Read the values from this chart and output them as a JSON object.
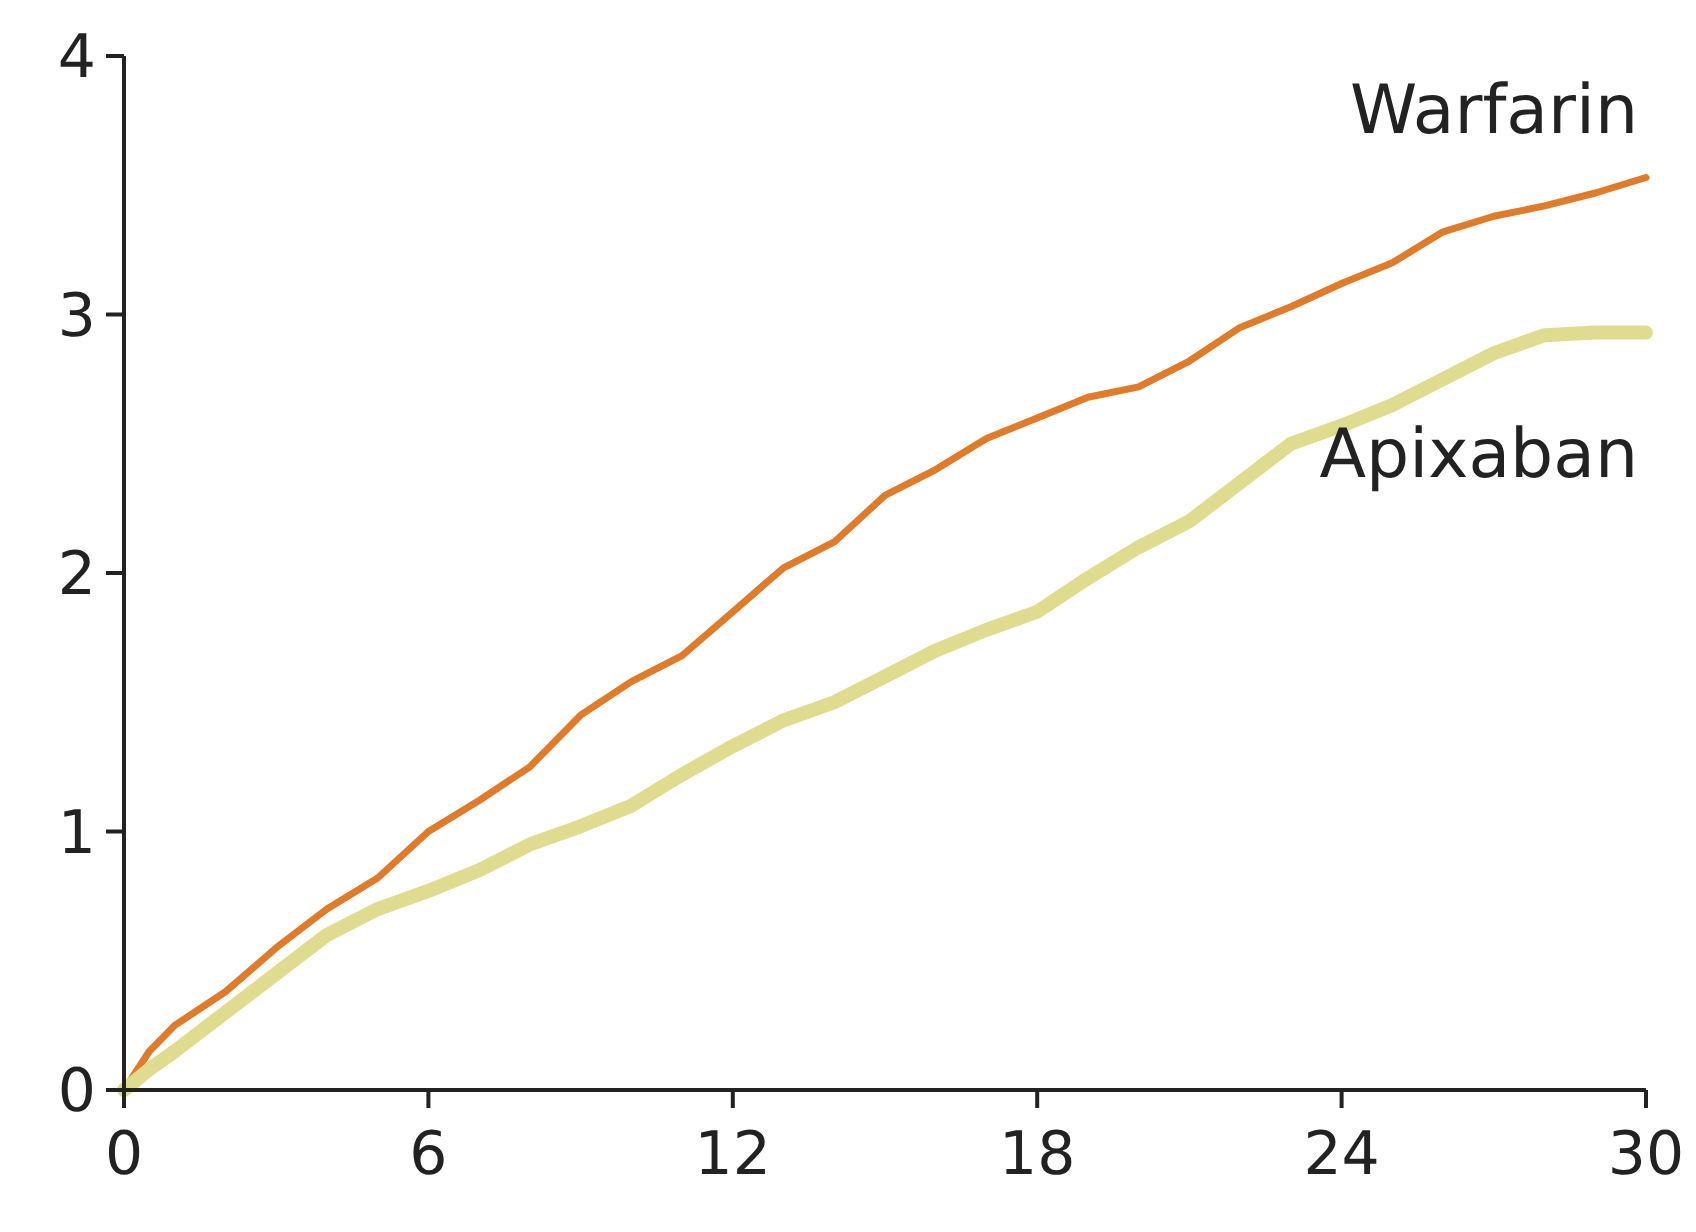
{
  "chart_data": {
    "type": "line",
    "x": [
      0,
      0.5,
      1,
      2,
      3,
      4,
      5,
      6,
      7,
      8,
      9,
      10,
      11,
      12,
      13,
      14,
      15,
      16,
      17,
      18,
      19,
      20,
      21,
      22,
      23,
      24,
      25,
      26,
      27,
      28,
      29,
      30
    ],
    "xlim": [
      0,
      30
    ],
    "xticks": [
      0,
      6,
      12,
      18,
      24,
      30
    ],
    "ylim": [
      0,
      4
    ],
    "yticks": [
      0,
      1,
      2,
      3,
      4
    ],
    "series": [
      {
        "name": "Warfarin",
        "color": "#e07b2a",
        "values": [
          0,
          0.15,
          0.25,
          0.38,
          0.55,
          0.7,
          0.82,
          1.0,
          1.12,
          1.25,
          1.45,
          1.58,
          1.68,
          1.85,
          2.02,
          2.12,
          2.3,
          2.4,
          2.52,
          2.6,
          2.68,
          2.72,
          2.82,
          2.95,
          3.03,
          3.12,
          3.2,
          3.32,
          3.38,
          3.42,
          3.47,
          3.53
        ]
      },
      {
        "name": "Apixaban",
        "color": "#e0dc8f",
        "values": [
          0,
          0.08,
          0.15,
          0.3,
          0.45,
          0.6,
          0.7,
          0.77,
          0.85,
          0.95,
          1.02,
          1.1,
          1.22,
          1.33,
          1.43,
          1.5,
          1.6,
          1.7,
          1.78,
          1.85,
          1.98,
          2.1,
          2.2,
          2.35,
          2.5,
          2.57,
          2.65,
          2.75,
          2.85,
          2.92,
          2.93,
          2.93
        ]
      }
    ],
    "legend": false,
    "grid": false,
    "marker": "none",
    "line_style": "solid"
  }
}
